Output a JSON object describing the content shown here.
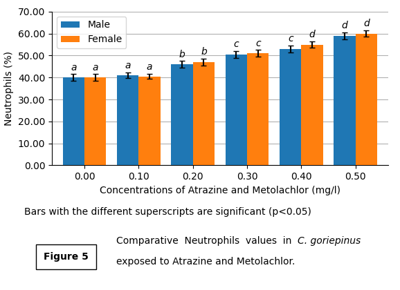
{
  "chart_data": {
    "type": "bar",
    "categories": [
      "0.00",
      "0.10",
      "0.20",
      "0.30",
      "0.40",
      "0.50"
    ],
    "series": [
      {
        "name": "Male",
        "values": [
          40.0,
          41.0,
          46.0,
          50.5,
          53.0,
          59.0
        ],
        "errors": [
          1.5,
          1.2,
          1.5,
          1.5,
          1.5,
          1.5
        ],
        "letters": [
          "a",
          "a",
          "b",
          "c",
          "c",
          "d"
        ]
      },
      {
        "name": "Female",
        "values": [
          40.0,
          40.5,
          47.0,
          51.0,
          55.0,
          60.0
        ],
        "errors": [
          1.5,
          1.2,
          1.5,
          1.5,
          1.5,
          1.5
        ],
        "letters": [
          "a",
          "a",
          "b",
          "c",
          "d",
          "d"
        ]
      }
    ],
    "xlabel": "Concentrations of Atrazine and Metolachlor (mg/l)",
    "ylabel": "Neutrophils (%)",
    "ylim": [
      0,
      70
    ],
    "yticks": [
      {
        "value": 0,
        "label": "0.00"
      },
      {
        "value": 10,
        "label": "10.00"
      },
      {
        "value": 20,
        "label": "20.00"
      },
      {
        "value": 30,
        "label": "30.00"
      },
      {
        "value": 40,
        "label": "40.00"
      },
      {
        "value": 50,
        "label": "50.00"
      },
      {
        "value": 60,
        "label": "60.00"
      },
      {
        "value": 70,
        "label": "70.00"
      }
    ],
    "grid": true,
    "legend": "upper left",
    "annotations": [
      "Bars with the different superscripts are significant (p<0.05)"
    ],
    "figure_label": "Figure 5",
    "caption": [
      "Comparative  Neutrophils  values  in ",
      "C. goriepinus",
      "exposed to Atrazine and Metolachlor."
    ]
  }
}
